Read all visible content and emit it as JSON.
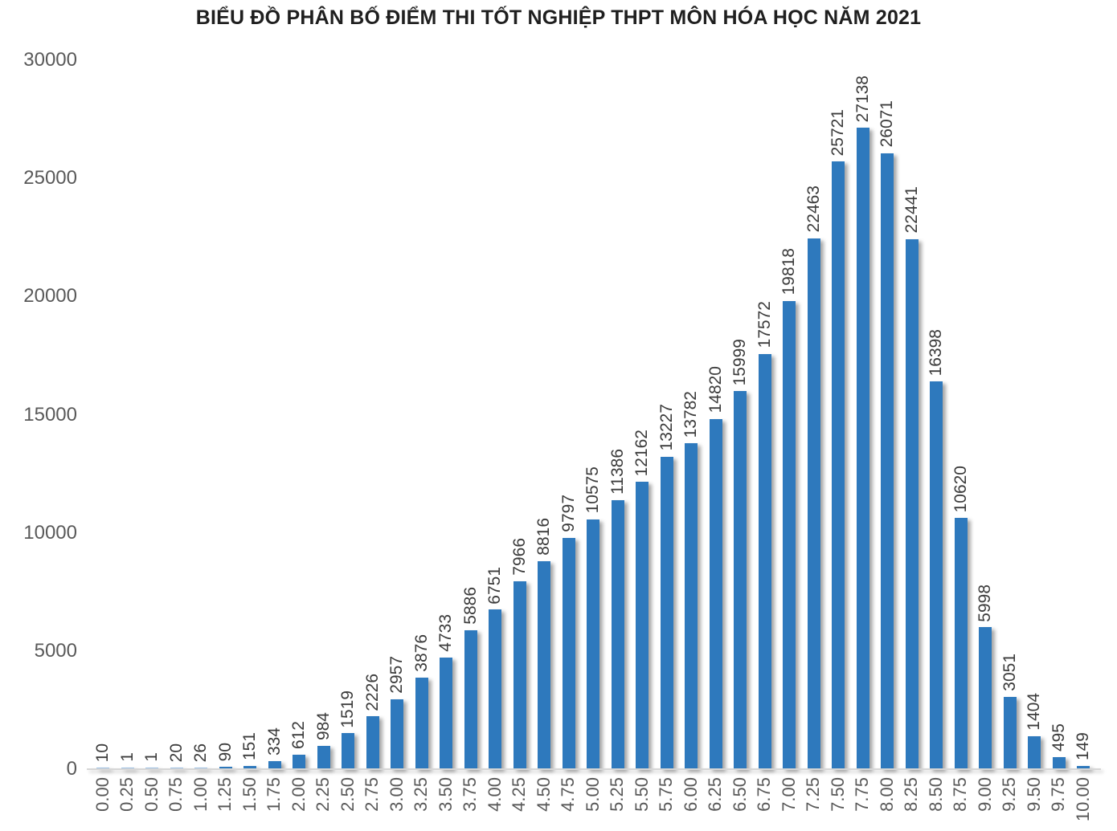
{
  "title": "BIỂU ĐỒ PHÂN BỐ ĐIỂM THI TỐT NGHIỆP THPT MÔN HÓA HỌC NĂM 2021",
  "chart_data": {
    "type": "bar",
    "title": "BIỂU ĐỒ PHÂN BỐ ĐIỂM THI TỐT NGHIỆP THPT MÔN HÓA HỌC NĂM 2021",
    "categories": [
      "0.00",
      "0.25",
      "0.50",
      "0.75",
      "1.00",
      "1.25",
      "1.50",
      "1.75",
      "2.00",
      "2.25",
      "2.50",
      "2.75",
      "3.00",
      "3.25",
      "3.50",
      "3.75",
      "4.00",
      "4.25",
      "4.50",
      "4.75",
      "5.00",
      "5.25",
      "5.50",
      "5.75",
      "6.00",
      "6.25",
      "6.50",
      "6.75",
      "7.00",
      "7.25",
      "7.50",
      "7.75",
      "8.00",
      "8.25",
      "8.50",
      "8.75",
      "9.00",
      "9.25",
      "9.50",
      "9.75",
      "10.00"
    ],
    "values": [
      10,
      1,
      1,
      20,
      26,
      90,
      151,
      334,
      612,
      984,
      1519,
      2226,
      2957,
      3876,
      4733,
      5886,
      6751,
      7966,
      8816,
      9797,
      10575,
      11386,
      12162,
      13227,
      13782,
      14820,
      15999,
      17572,
      19818,
      22463,
      25721,
      27138,
      26071,
      22441,
      16398,
      10620,
      5998,
      3051,
      1404,
      495,
      149
    ],
    "xlabel": "",
    "ylabel": "",
    "ylim": [
      0,
      30000
    ],
    "yticks": [
      "0",
      "5000",
      "10000",
      "15000",
      "20000",
      "25000",
      "30000"
    ],
    "grid": false,
    "legend": false,
    "data_labels": "rotated-90-above-bars",
    "x_labels": "rotated-90-below-axis",
    "bar_color": "#2e79bd",
    "bar_color_faint": "#9dc3e6",
    "value_label_color": "#3b3b3b",
    "tick_label_color": "#595959"
  }
}
